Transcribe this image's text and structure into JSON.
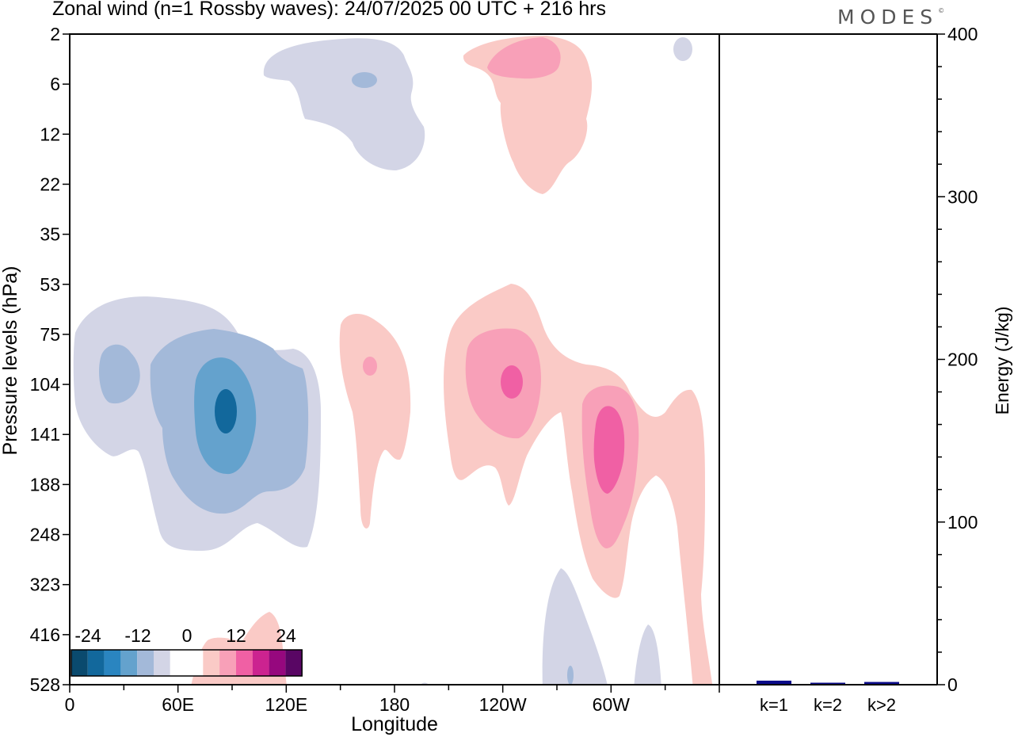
{
  "title": "Zonal wind (n=1 Rossby waves):  24/07/2025  00 UTC  + 216 hrs",
  "logo": "MODES",
  "logo_mark": "©",
  "chart_data": [
    {
      "type": "contour",
      "title": "Zonal wind (n=1 Rossby waves):  24/07/2025  00 UTC  + 216 hrs",
      "xlabel": "Longitude",
      "ylabel": "Pressure levels (hPa)",
      "xticks": [
        "0",
        "60E",
        "120E",
        "180",
        "120W",
        "60W"
      ],
      "yticks": [
        "2",
        "6",
        "12",
        "22",
        "35",
        "53",
        "75",
        "104",
        "141",
        "188",
        "248",
        "323",
        "416",
        "528"
      ],
      "colorbar": {
        "labels": [
          "-24",
          "-12",
          "0",
          "12",
          "24"
        ],
        "colors": [
          "#0a4a6e",
          "#12689c",
          "#2a85c0",
          "#64a2cd",
          "#a3b9d9",
          "#d3d5e6",
          "#ffffff",
          "#ffffff",
          "#facac6",
          "#f8a0b8",
          "#f060a4",
          "#cc2390",
          "#96087e",
          "#590664"
        ]
      }
    },
    {
      "type": "bar",
      "ylabel": "Energy (J/kg)",
      "ylim": [
        0,
        400
      ],
      "yticks": [
        "0",
        "100",
        "200",
        "300",
        "400"
      ],
      "categories": [
        "k=1",
        "k=2",
        "k>2"
      ],
      "values": [
        2,
        0.5,
        1.2
      ],
      "bar_color": "#0b0b8a"
    }
  ]
}
